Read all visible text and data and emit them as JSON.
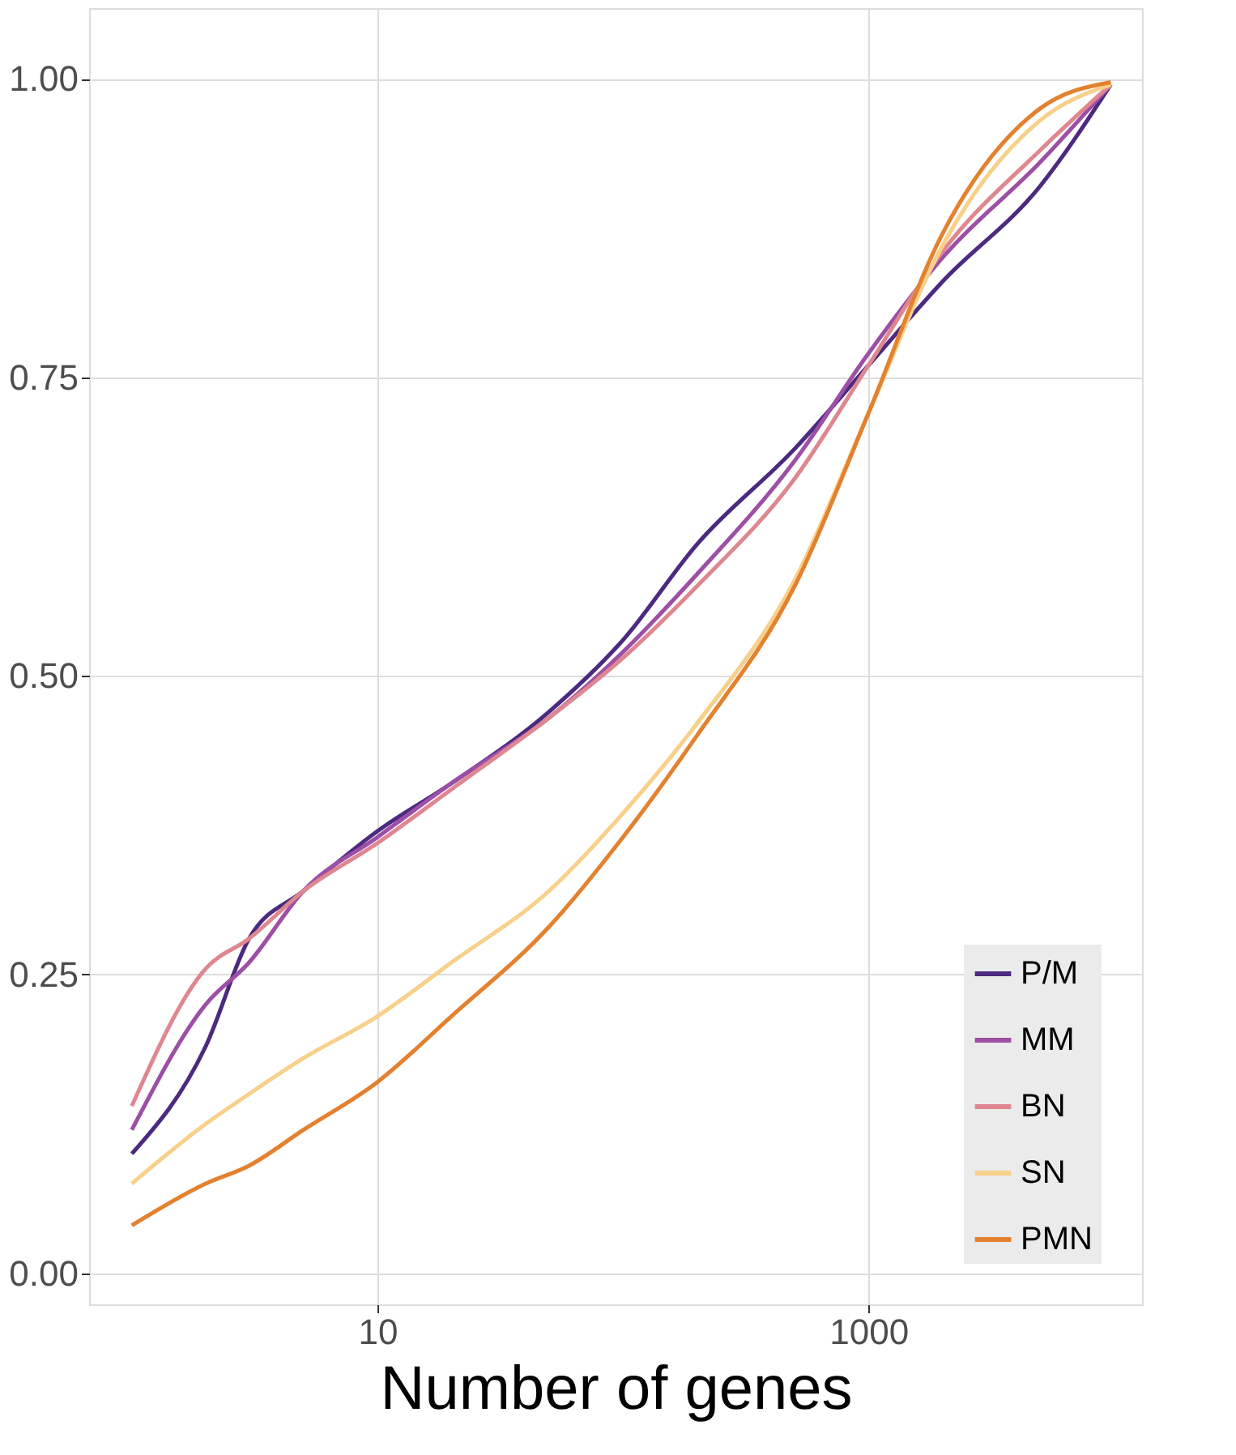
{
  "chart_data": {
    "type": "line",
    "xlabel": "Number of genes",
    "log": "x",
    "x": [
      1,
      2,
      3,
      5,
      10,
      20,
      50,
      100,
      200,
      500,
      1000,
      2000,
      5000,
      9700
    ],
    "series": [
      {
        "name": "P/M",
        "color": "#4b2a7f",
        "values": [
          0.1,
          0.19,
          0.28,
          0.32,
          0.37,
          0.41,
          0.47,
          0.53,
          0.61,
          0.69,
          0.76,
          0.83,
          0.91,
          0.995
        ]
      },
      {
        "name": "MM",
        "color": "#9d4fa6",
        "values": [
          0.12,
          0.225,
          0.26,
          0.32,
          0.365,
          0.41,
          0.465,
          0.52,
          0.585,
          0.68,
          0.77,
          0.85,
          0.93,
          0.995
        ]
      },
      {
        "name": "BN",
        "color": "#de8790",
        "values": [
          0.14,
          0.255,
          0.28,
          0.32,
          0.36,
          0.405,
          0.465,
          0.515,
          0.575,
          0.665,
          0.76,
          0.855,
          0.94,
          0.995
        ]
      },
      {
        "name": "SN",
        "color": "#f7d08a",
        "values": [
          0.075,
          0.125,
          0.15,
          0.18,
          0.215,
          0.26,
          0.32,
          0.385,
          0.46,
          0.58,
          0.72,
          0.86,
          0.965,
          0.995
        ]
      },
      {
        "name": "PMN",
        "color": "#e4812f",
        "values": [
          0.04,
          0.075,
          0.09,
          0.12,
          0.16,
          0.215,
          0.29,
          0.365,
          0.45,
          0.575,
          0.72,
          0.87,
          0.975,
          0.997
        ]
      }
    ],
    "xlim": [
      0.67,
      13000
    ],
    "xticks": [
      10,
      1000
    ],
    "ylim": [
      -0.026,
      1.059
    ],
    "yticks": [
      {
        "value": 0,
        "label": "0.00"
      },
      0.25,
      {
        "value": 0.5,
        "label": "0.50"
      },
      0.75,
      {
        "value": 1,
        "label": "1.00"
      }
    ],
    "grid": true,
    "legend": "bottom right",
    "marker": "none",
    "line_style": "solid"
  }
}
